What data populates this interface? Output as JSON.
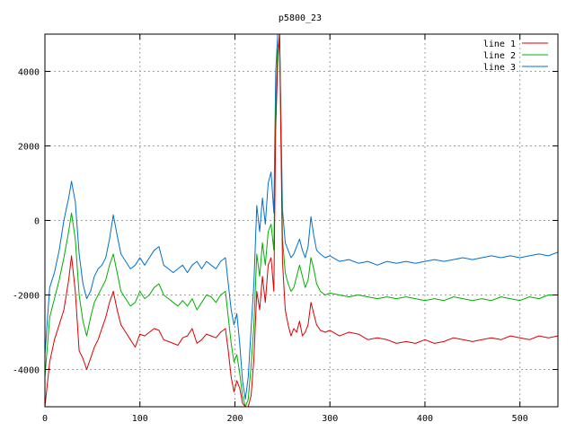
{
  "chart_data": {
    "type": "line",
    "title": "p5800_23",
    "xlabel": "",
    "ylabel": "",
    "xlim": [
      0,
      540
    ],
    "ylim": [
      -5000,
      5000
    ],
    "x_ticks": [
      0,
      100,
      200,
      300,
      400,
      500
    ],
    "y_ticks": [
      -4000,
      -2000,
      0,
      2000,
      4000
    ],
    "grid": true,
    "legend_position": "top-right",
    "series": [
      {
        "name": "line 1",
        "color": "#dd0000",
        "x": [
          0,
          5,
          10,
          15,
          20,
          25,
          28,
          32,
          36,
          40,
          44,
          48,
          52,
          56,
          60,
          64,
          68,
          72,
          76,
          80,
          85,
          90,
          95,
          100,
          105,
          110,
          115,
          120,
          125,
          130,
          135,
          140,
          145,
          150,
          155,
          160,
          165,
          170,
          175,
          180,
          185,
          190,
          193,
          196,
          199,
          202,
          205,
          208,
          211,
          214,
          217,
          220,
          223,
          226,
          229,
          232,
          235,
          238,
          241,
          243,
          245,
          247,
          250,
          253,
          256,
          259,
          262,
          265,
          268,
          271,
          274,
          277,
          280,
          283,
          286,
          290,
          295,
          300,
          310,
          320,
          330,
          340,
          350,
          360,
          370,
          380,
          390,
          400,
          410,
          420,
          430,
          440,
          450,
          460,
          470,
          480,
          490,
          500,
          510,
          520,
          530,
          540
        ],
        "values": [
          -5000,
          -3800,
          -3200,
          -2800,
          -2400,
          -1600,
          -950,
          -1900,
          -3500,
          -3700,
          -4000,
          -3700,
          -3400,
          -3200,
          -2900,
          -2600,
          -2200,
          -1900,
          -2400,
          -2800,
          -3000,
          -3200,
          -3400,
          -3050,
          -3100,
          -3000,
          -2900,
          -2950,
          -3200,
          -3250,
          -3300,
          -3350,
          -3150,
          -3100,
          -2900,
          -3300,
          -3200,
          -3050,
          -3100,
          -3150,
          -3000,
          -2900,
          -3500,
          -4200,
          -4600,
          -4300,
          -4500,
          -4900,
          -5000,
          -5000,
          -4700,
          -3700,
          -1900,
          -2400,
          -1500,
          -2200,
          -1200,
          -1000,
          -1900,
          2500,
          4200,
          5000,
          -1100,
          -2400,
          -2800,
          -3100,
          -2900,
          -3000,
          -2700,
          -3100,
          -3000,
          -2800,
          -2200,
          -2500,
          -2800,
          -2950,
          -3000,
          -2950,
          -3100,
          -3000,
          -3050,
          -3200,
          -3150,
          -3200,
          -3300,
          -3250,
          -3300,
          -3200,
          -3300,
          -3250,
          -3150,
          -3200,
          -3250,
          -3200,
          -3150,
          -3200,
          -3100,
          -3150,
          -3200,
          -3100,
          -3150,
          -3100
        ]
      },
      {
        "name": "line 2",
        "color": "#00b000",
        "x": [
          0,
          5,
          10,
          15,
          20,
          25,
          28,
          32,
          36,
          40,
          44,
          48,
          52,
          56,
          60,
          64,
          68,
          72,
          76,
          80,
          85,
          90,
          95,
          100,
          105,
          110,
          115,
          120,
          125,
          130,
          135,
          140,
          145,
          150,
          155,
          160,
          165,
          170,
          175,
          180,
          185,
          190,
          193,
          196,
          199,
          202,
          205,
          208,
          211,
          214,
          217,
          220,
          223,
          226,
          229,
          232,
          235,
          238,
          241,
          243,
          245,
          247,
          250,
          253,
          256,
          259,
          262,
          265,
          268,
          271,
          274,
          277,
          280,
          283,
          286,
          290,
          295,
          300,
          310,
          320,
          330,
          340,
          350,
          360,
          370,
          380,
          390,
          400,
          410,
          420,
          430,
          440,
          450,
          460,
          470,
          480,
          490,
          500,
          510,
          520,
          530,
          540
        ],
        "values": [
          -4200,
          -2600,
          -2100,
          -1600,
          -1000,
          -300,
          200,
          -500,
          -2000,
          -2700,
          -3100,
          -2600,
          -2200,
          -2000,
          -1800,
          -1600,
          -1200,
          -900,
          -1400,
          -1900,
          -2100,
          -2300,
          -2200,
          -1900,
          -2100,
          -2000,
          -1800,
          -1700,
          -2000,
          -2100,
          -2200,
          -2300,
          -2150,
          -2300,
          -2100,
          -2400,
          -2200,
          -2000,
          -2050,
          -2200,
          -2000,
          -1900,
          -2600,
          -3300,
          -3800,
          -3600,
          -4100,
          -4700,
          -5000,
          -4800,
          -3900,
          -2800,
          -900,
          -1500,
          -600,
          -1200,
          -300,
          -100,
          -800,
          3000,
          4600,
          5000,
          -500,
          -1400,
          -1700,
          -1900,
          -1800,
          -1500,
          -1200,
          -1500,
          -1800,
          -1600,
          -1000,
          -1300,
          -1700,
          -1900,
          -2000,
          -1950,
          -2000,
          -2050,
          -2000,
          -2050,
          -2100,
          -2050,
          -2100,
          -2050,
          -2100,
          -2150,
          -2100,
          -2150,
          -2050,
          -2100,
          -2150,
          -2100,
          -2150,
          -2050,
          -2100,
          -2150,
          -2050,
          -2100,
          -2000,
          -2000
        ]
      },
      {
        "name": "line 3",
        "color": "#0070d0",
        "x": [
          0,
          5,
          10,
          15,
          20,
          25,
          28,
          32,
          36,
          40,
          44,
          48,
          52,
          56,
          60,
          64,
          68,
          72,
          76,
          80,
          85,
          90,
          95,
          100,
          105,
          110,
          115,
          120,
          125,
          130,
          135,
          140,
          145,
          150,
          155,
          160,
          165,
          170,
          175,
          180,
          185,
          190,
          193,
          196,
          199,
          202,
          205,
          208,
          211,
          214,
          217,
          220,
          223,
          226,
          229,
          232,
          235,
          238,
          241,
          243,
          245,
          247,
          250,
          253,
          256,
          259,
          262,
          265,
          268,
          271,
          274,
          277,
          280,
          283,
          286,
          290,
          295,
          300,
          310,
          320,
          330,
          340,
          350,
          360,
          370,
          380,
          390,
          400,
          410,
          420,
          430,
          440,
          450,
          460,
          470,
          480,
          490,
          500,
          510,
          520,
          530,
          540
        ],
        "values": [
          -3600,
          -1800,
          -1400,
          -800,
          0,
          600,
          1050,
          500,
          -900,
          -1700,
          -2100,
          -1900,
          -1500,
          -1300,
          -1200,
          -1000,
          -500,
          150,
          -400,
          -900,
          -1100,
          -1300,
          -1200,
          -1000,
          -1200,
          -1000,
          -800,
          -700,
          -1200,
          -1300,
          -1400,
          -1300,
          -1200,
          -1400,
          -1200,
          -1100,
          -1300,
          -1100,
          -1200,
          -1300,
          -1100,
          -1000,
          -1700,
          -2400,
          -2800,
          -2500,
          -3300,
          -4300,
          -4800,
          -4200,
          -2900,
          -1700,
          400,
          -300,
          600,
          -100,
          1000,
          1300,
          200,
          4000,
          5000,
          5000,
          300,
          -600,
          -800,
          -1000,
          -900,
          -700,
          -500,
          -800,
          -1000,
          -700,
          100,
          -400,
          -800,
          -900,
          -1000,
          -950,
          -1100,
          -1050,
          -1150,
          -1100,
          -1200,
          -1100,
          -1150,
          -1100,
          -1150,
          -1100,
          -1050,
          -1100,
          -1050,
          -1000,
          -1050,
          -1000,
          -950,
          -1000,
          -950,
          -1000,
          -950,
          -900,
          -950,
          -850
        ]
      }
    ]
  }
}
